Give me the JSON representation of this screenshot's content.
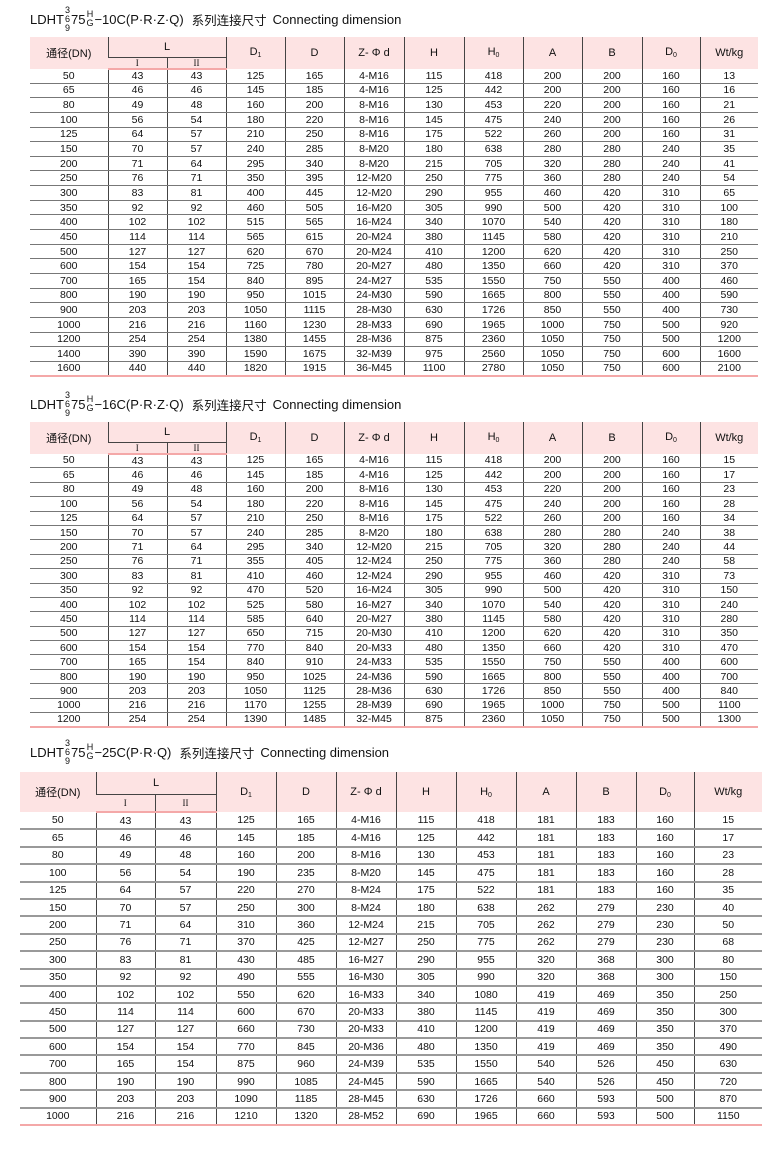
{
  "header_labels": {
    "dn": "通径(DN)",
    "l": "L",
    "l1": "I",
    "l2": "II",
    "d1": "D",
    "d1_sub": "1",
    "d": "D",
    "zd": "Z- Φ d",
    "h": "H",
    "h0": "H",
    "h0_sub": "0",
    "a": "A",
    "b": "B",
    "d0": "D",
    "d0_sub": "0",
    "wt": "Wt/kg"
  },
  "tables": [
    {
      "title": {
        "prefix": "LDHT",
        "stack": [
          "3",
          "6",
          "9"
        ],
        "mid": "75",
        "stack2": [
          "H",
          "G"
        ],
        "suffix": "−10C(P·R·Z·Q)",
        "cn": "系列连接尺寸",
        "en": "Connecting dimension"
      },
      "rows": [
        [
          "50",
          "43",
          "43",
          "125",
          "165",
          "4-M16",
          "115",
          "418",
          "200",
          "200",
          "160",
          "13"
        ],
        [
          "65",
          "46",
          "46",
          "145",
          "185",
          "4-M16",
          "125",
          "442",
          "200",
          "200",
          "160",
          "16"
        ],
        [
          "80",
          "49",
          "48",
          "160",
          "200",
          "8-M16",
          "130",
          "453",
          "220",
          "200",
          "160",
          "21"
        ],
        [
          "100",
          "56",
          "54",
          "180",
          "220",
          "8-M16",
          "145",
          "475",
          "240",
          "200",
          "160",
          "26"
        ],
        [
          "125",
          "64",
          "57",
          "210",
          "250",
          "8-M16",
          "175",
          "522",
          "260",
          "200",
          "160",
          "31"
        ],
        [
          "150",
          "70",
          "57",
          "240",
          "285",
          "8-M20",
          "180",
          "638",
          "280",
          "280",
          "240",
          "35"
        ],
        [
          "200",
          "71",
          "64",
          "295",
          "340",
          "8-M20",
          "215",
          "705",
          "320",
          "280",
          "240",
          "41"
        ],
        [
          "250",
          "76",
          "71",
          "350",
          "395",
          "12-M20",
          "250",
          "775",
          "360",
          "280",
          "240",
          "54"
        ],
        [
          "300",
          "83",
          "81",
          "400",
          "445",
          "12-M20",
          "290",
          "955",
          "460",
          "420",
          "310",
          "65"
        ],
        [
          "350",
          "92",
          "92",
          "460",
          "505",
          "16-M20",
          "305",
          "990",
          "500",
          "420",
          "310",
          "100"
        ],
        [
          "400",
          "102",
          "102",
          "515",
          "565",
          "16-M24",
          "340",
          "1070",
          "540",
          "420",
          "310",
          "180"
        ],
        [
          "450",
          "114",
          "114",
          "565",
          "615",
          "20-M24",
          "380",
          "1145",
          "580",
          "420",
          "310",
          "210"
        ],
        [
          "500",
          "127",
          "127",
          "620",
          "670",
          "20-M24",
          "410",
          "1200",
          "620",
          "420",
          "310",
          "250"
        ],
        [
          "600",
          "154",
          "154",
          "725",
          "780",
          "20-M27",
          "480",
          "1350",
          "660",
          "420",
          "310",
          "370"
        ],
        [
          "700",
          "165",
          "154",
          "840",
          "895",
          "24-M27",
          "535",
          "1550",
          "750",
          "550",
          "400",
          "460"
        ],
        [
          "800",
          "190",
          "190",
          "950",
          "1015",
          "24-M30",
          "590",
          "1665",
          "800",
          "550",
          "400",
          "590"
        ],
        [
          "900",
          "203",
          "203",
          "1050",
          "1115",
          "28-M30",
          "630",
          "1726",
          "850",
          "550",
          "400",
          "730"
        ],
        [
          "1000",
          "216",
          "216",
          "1160",
          "1230",
          "28-M33",
          "690",
          "1965",
          "1000",
          "750",
          "500",
          "920"
        ],
        [
          "1200",
          "254",
          "254",
          "1380",
          "1455",
          "28-M36",
          "875",
          "2360",
          "1050",
          "750",
          "500",
          "1200"
        ],
        [
          "1400",
          "390",
          "390",
          "1590",
          "1675",
          "32-M39",
          "975",
          "2560",
          "1050",
          "750",
          "600",
          "1600"
        ],
        [
          "1600",
          "440",
          "440",
          "1820",
          "1915",
          "36-M45",
          "1100",
          "2780",
          "1050",
          "750",
          "600",
          "2100"
        ]
      ]
    },
    {
      "title": {
        "prefix": "LDHT",
        "stack": [
          "3",
          "6",
          "9"
        ],
        "mid": "75",
        "stack2": [
          "H",
          "G"
        ],
        "suffix": "−16C(P·R·Z·Q)",
        "cn": "系列连接尺寸",
        "en": "Connecting dimension"
      },
      "rows": [
        [
          "50",
          "43",
          "43",
          "125",
          "165",
          "4-M16",
          "115",
          "418",
          "200",
          "200",
          "160",
          "15"
        ],
        [
          "65",
          "46",
          "46",
          "145",
          "185",
          "4-M16",
          "125",
          "442",
          "200",
          "200",
          "160",
          "17"
        ],
        [
          "80",
          "49",
          "48",
          "160",
          "200",
          "8-M16",
          "130",
          "453",
          "220",
          "200",
          "160",
          "23"
        ],
        [
          "100",
          "56",
          "54",
          "180",
          "220",
          "8-M16",
          "145",
          "475",
          "240",
          "200",
          "160",
          "28"
        ],
        [
          "125",
          "64",
          "57",
          "210",
          "250",
          "8-M16",
          "175",
          "522",
          "260",
          "200",
          "160",
          "34"
        ],
        [
          "150",
          "70",
          "57",
          "240",
          "285",
          "8-M20",
          "180",
          "638",
          "280",
          "280",
          "240",
          "38"
        ],
        [
          "200",
          "71",
          "64",
          "295",
          "340",
          "12-M20",
          "215",
          "705",
          "320",
          "280",
          "240",
          "44"
        ],
        [
          "250",
          "76",
          "71",
          "355",
          "405",
          "12-M24",
          "250",
          "775",
          "360",
          "280",
          "240",
          "58"
        ],
        [
          "300",
          "83",
          "81",
          "410",
          "460",
          "12-M24",
          "290",
          "955",
          "460",
          "420",
          "310",
          "73"
        ],
        [
          "350",
          "92",
          "92",
          "470",
          "520",
          "16-M24",
          "305",
          "990",
          "500",
          "420",
          "310",
          "150"
        ],
        [
          "400",
          "102",
          "102",
          "525",
          "580",
          "16-M27",
          "340",
          "1070",
          "540",
          "420",
          "310",
          "240"
        ],
        [
          "450",
          "114",
          "114",
          "585",
          "640",
          "20-M27",
          "380",
          "1145",
          "580",
          "420",
          "310",
          "280"
        ],
        [
          "500",
          "127",
          "127",
          "650",
          "715",
          "20-M30",
          "410",
          "1200",
          "620",
          "420",
          "310",
          "350"
        ],
        [
          "600",
          "154",
          "154",
          "770",
          "840",
          "20-M33",
          "480",
          "1350",
          "660",
          "420",
          "310",
          "470"
        ],
        [
          "700",
          "165",
          "154",
          "840",
          "910",
          "24-M33",
          "535",
          "1550",
          "750",
          "550",
          "400",
          "600"
        ],
        [
          "800",
          "190",
          "190",
          "950",
          "1025",
          "24-M36",
          "590",
          "1665",
          "800",
          "550",
          "400",
          "700"
        ],
        [
          "900",
          "203",
          "203",
          "1050",
          "1125",
          "28-M36",
          "630",
          "1726",
          "850",
          "550",
          "400",
          "840"
        ],
        [
          "1000",
          "216",
          "216",
          "1170",
          "1255",
          "28-M39",
          "690",
          "1965",
          "1000",
          "750",
          "500",
          "1100"
        ],
        [
          "1200",
          "254",
          "254",
          "1390",
          "1485",
          "32-M45",
          "875",
          "2360",
          "1050",
          "750",
          "500",
          "1300"
        ]
      ]
    },
    {
      "title": {
        "prefix": "LDHT",
        "stack": [
          "3",
          "6",
          "9"
        ],
        "mid": "75",
        "stack2": [
          "H",
          "G"
        ],
        "suffix": "−25C(P·R·Q)",
        "cn": "系列连接尺寸",
        "en": "Connecting dimension"
      },
      "rows": [
        [
          "50",
          "43",
          "43",
          "125",
          "165",
          "4-M16",
          "115",
          "418",
          "181",
          "183",
          "160",
          "15"
        ],
        [
          "65",
          "46",
          "46",
          "145",
          "185",
          "4-M16",
          "125",
          "442",
          "181",
          "183",
          "160",
          "17"
        ],
        [
          "80",
          "49",
          "48",
          "160",
          "200",
          "8-M16",
          "130",
          "453",
          "181",
          "183",
          "160",
          "23"
        ],
        [
          "100",
          "56",
          "54",
          "190",
          "235",
          "8-M20",
          "145",
          "475",
          "181",
          "183",
          "160",
          "28"
        ],
        [
          "125",
          "64",
          "57",
          "220",
          "270",
          "8-M24",
          "175",
          "522",
          "181",
          "183",
          "160",
          "35"
        ],
        [
          "150",
          "70",
          "57",
          "250",
          "300",
          "8-M24",
          "180",
          "638",
          "262",
          "279",
          "230",
          "40"
        ],
        [
          "200",
          "71",
          "64",
          "310",
          "360",
          "12-M24",
          "215",
          "705",
          "262",
          "279",
          "230",
          "50"
        ],
        [
          "250",
          "76",
          "71",
          "370",
          "425",
          "12-M27",
          "250",
          "775",
          "262",
          "279",
          "230",
          "68"
        ],
        [
          "300",
          "83",
          "81",
          "430",
          "485",
          "16-M27",
          "290",
          "955",
          "320",
          "368",
          "300",
          "80"
        ],
        [
          "350",
          "92",
          "92",
          "490",
          "555",
          "16-M30",
          "305",
          "990",
          "320",
          "368",
          "300",
          "150"
        ],
        [
          "400",
          "102",
          "102",
          "550",
          "620",
          "16-M33",
          "340",
          "1080",
          "419",
          "469",
          "350",
          "250"
        ],
        [
          "450",
          "114",
          "114",
          "600",
          "670",
          "20-M33",
          "380",
          "1145",
          "419",
          "469",
          "350",
          "300"
        ],
        [
          "500",
          "127",
          "127",
          "660",
          "730",
          "20-M33",
          "410",
          "1200",
          "419",
          "469",
          "350",
          "370"
        ],
        [
          "600",
          "154",
          "154",
          "770",
          "845",
          "20-M36",
          "480",
          "1350",
          "419",
          "469",
          "350",
          "490"
        ],
        [
          "700",
          "165",
          "154",
          "875",
          "960",
          "24-M39",
          "535",
          "1550",
          "540",
          "526",
          "450",
          "630"
        ],
        [
          "800",
          "190",
          "190",
          "990",
          "1085",
          "24-M45",
          "590",
          "1665",
          "540",
          "526",
          "450",
          "720"
        ],
        [
          "900",
          "203",
          "203",
          "1090",
          "1185",
          "28-M45",
          "630",
          "1726",
          "660",
          "593",
          "500",
          "870"
        ],
        [
          "1000",
          "216",
          "216",
          "1210",
          "1320",
          "28-M52",
          "690",
          "1965",
          "660",
          "593",
          "500",
          "1150"
        ]
      ]
    }
  ]
}
